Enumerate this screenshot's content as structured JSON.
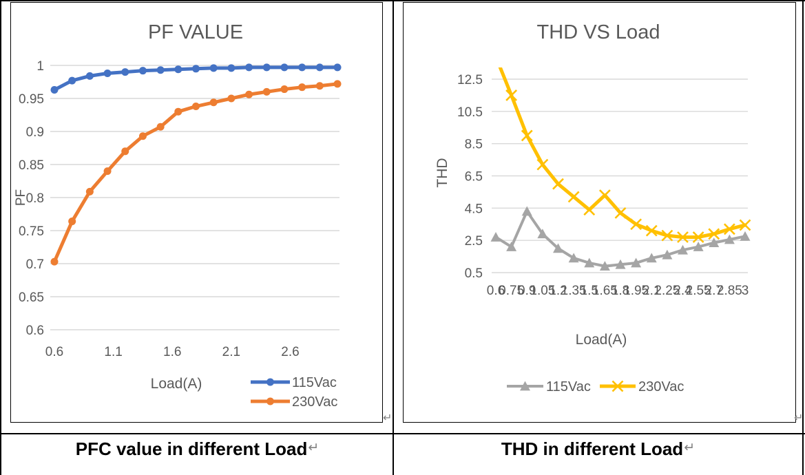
{
  "captions": {
    "left": "PFC value in different Load",
    "right": "THD in different Load",
    "return_mark": "↵"
  },
  "anchors": {
    "left_mark": "↵",
    "right_mark": "↵"
  },
  "colors": {
    "blue": "#4472C4",
    "orange": "#ED7D31",
    "gray": "#A5A5A5",
    "yellow": "#FFC000",
    "text": "#595959",
    "gridline": "#D9D9D9",
    "border": "#000000"
  },
  "chart_data": [
    {
      "id": "pf",
      "type": "line",
      "title": "PF VALUE",
      "xlabel": "Load(A)",
      "ylabel": "PF",
      "x": [
        0.6,
        0.75,
        0.9,
        1.05,
        1.2,
        1.35,
        1.5,
        1.65,
        1.8,
        1.95,
        2.1,
        2.25,
        2.4,
        2.55,
        2.7,
        2.85,
        3
      ],
      "xlim": [
        0.6,
        3
      ],
      "ylim": [
        0.6,
        1.0
      ],
      "grid": true,
      "legend_position": "bottom-right-stacked",
      "y_ticks": [
        1,
        0.95,
        0.9,
        0.85,
        0.8,
        0.75,
        0.7,
        0.65,
        0.6
      ],
      "y_tick_labels": [
        "1",
        "0.95",
        "0.9",
        "0.85",
        "0.8",
        "0.75",
        "0.7",
        "0.65",
        "0.6"
      ],
      "x_ticks": [
        0.6,
        1.1,
        1.6,
        2.1,
        2.6
      ],
      "x_tick_labels": [
        "0.6",
        "1.1",
        "1.6",
        "2.1",
        "2.6"
      ],
      "series": [
        {
          "name": "115Vac",
          "color": "#4472C4",
          "marker": "circle",
          "values": [
            0.963,
            0.977,
            0.984,
            0.988,
            0.99,
            0.992,
            0.993,
            0.994,
            0.995,
            0.996,
            0.996,
            0.997,
            0.997,
            0.997,
            0.997,
            0.997,
            0.997
          ]
        },
        {
          "name": "230Vac",
          "color": "#ED7D31",
          "marker": "circle",
          "values": [
            0.703,
            0.764,
            0.809,
            0.84,
            0.87,
            0.893,
            0.907,
            0.93,
            0.938,
            0.944,
            0.95,
            0.956,
            0.96,
            0.964,
            0.967,
            0.969,
            0.972
          ]
        }
      ]
    },
    {
      "id": "thd",
      "type": "line",
      "title": "THD VS Load",
      "xlabel": "Load(A)",
      "ylabel": "THD",
      "x": [
        0.6,
        0.75,
        0.9,
        1.05,
        1.2,
        1.35,
        1.5,
        1.65,
        1.8,
        1.95,
        2.1,
        2.25,
        2.4,
        2.55,
        2.7,
        2.85,
        3
      ],
      "xlim": [
        0.6,
        3
      ],
      "ylim": [
        0.5,
        12.5
      ],
      "grid": true,
      "legend_position": "bottom-center-row",
      "y_ticks": [
        12.5,
        10.5,
        8.5,
        6.5,
        4.5,
        2.5,
        0.5
      ],
      "y_tick_labels": [
        "12.5",
        "10.5",
        "8.5",
        "6.5",
        "4.5",
        "2.5",
        "0.5"
      ],
      "x_ticks": [
        0.6,
        0.75,
        0.9,
        1.05,
        1.2,
        1.35,
        1.5,
        1.65,
        1.8,
        1.95,
        2.1,
        2.25,
        2.4,
        2.55,
        2.7,
        2.85,
        3
      ],
      "x_tick_labels": [
        "0.6",
        "0.75",
        "0.9",
        "1.05",
        "1.2",
        "1.35",
        "1.5",
        "1.65",
        "1.8",
        "1.95",
        "2.1",
        "2.25",
        "2.4",
        "2.55",
        "2.7",
        "2.85",
        "3"
      ],
      "series": [
        {
          "name": "115Vac",
          "color": "#A5A5A5",
          "marker": "triangle",
          "values": [
            2.7,
            2.1,
            4.3,
            2.9,
            2.0,
            1.4,
            1.1,
            0.9,
            1.0,
            1.1,
            1.4,
            1.6,
            1.9,
            2.1,
            2.35,
            2.55,
            2.75
          ]
        },
        {
          "name": "230Vac",
          "color": "#FFC000",
          "marker": "x",
          "values": [
            13.9,
            11.5,
            9.0,
            7.2,
            6.0,
            5.2,
            4.4,
            5.3,
            4.2,
            3.5,
            3.1,
            2.8,
            2.7,
            2.7,
            2.9,
            3.2,
            3.45
          ]
        }
      ]
    }
  ]
}
